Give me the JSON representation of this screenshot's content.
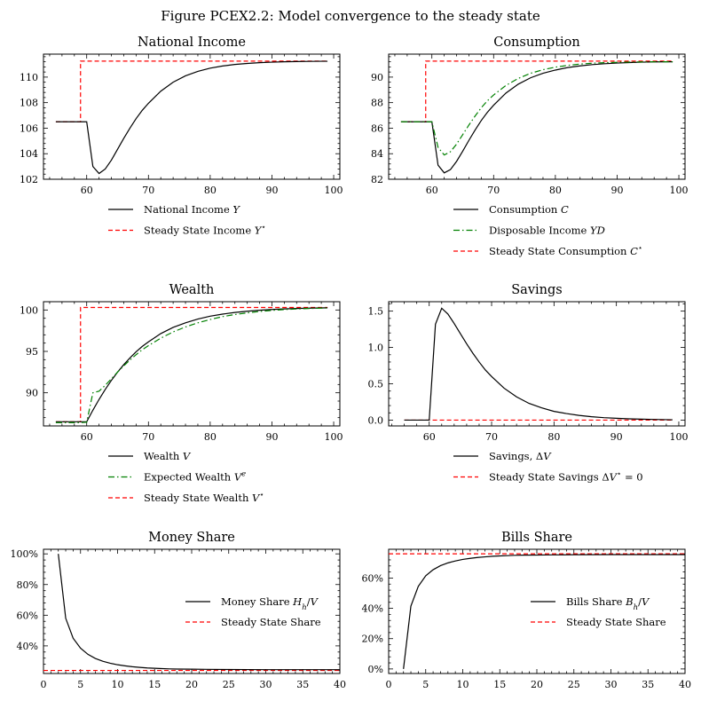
{
  "figure": {
    "title": "Figure PCEX2.2: Model convergence to the steady state"
  },
  "chart_data": [
    {
      "type": "line",
      "title": "National Income",
      "xlim": [
        53,
        101
      ],
      "ylim": [
        102,
        111.8
      ],
      "xticks": [
        60,
        70,
        80,
        90,
        100
      ],
      "yticks": [
        102,
        104,
        106,
        108,
        110
      ],
      "ytick_format": "plain",
      "legend_position": "below",
      "series": [
        {
          "name": "National Income Y",
          "color": "#000000",
          "dash": "solid",
          "x": [
            55,
            56,
            57,
            58,
            59,
            60,
            61,
            62,
            63,
            64,
            65,
            66,
            67,
            68,
            69,
            70,
            72,
            74,
            76,
            78,
            80,
            82,
            84,
            86,
            88,
            90,
            92,
            94,
            96,
            98,
            99
          ],
          "y": [
            106.5,
            106.5,
            106.5,
            106.5,
            106.5,
            106.5,
            103.0,
            102.45,
            102.8,
            103.5,
            104.35,
            105.2,
            106.0,
            106.75,
            107.4,
            107.95,
            108.9,
            109.6,
            110.1,
            110.45,
            110.7,
            110.87,
            110.99,
            111.07,
            111.13,
            111.17,
            111.2,
            111.22,
            111.23,
            111.24,
            111.24
          ]
        },
        {
          "name": "Steady State Income Y*",
          "color": "#ff0000",
          "dash": "dashed",
          "x": [
            55,
            59,
            59,
            99
          ],
          "y": [
            106.5,
            106.5,
            111.25,
            111.25
          ]
        }
      ]
    },
    {
      "type": "line",
      "title": "Consumption",
      "xlim": [
        53,
        101
      ],
      "ylim": [
        82,
        91.8
      ],
      "xticks": [
        60,
        70,
        80,
        90,
        100
      ],
      "yticks": [
        82,
        84,
        86,
        88,
        90
      ],
      "ytick_format": "plain",
      "legend_position": "below",
      "series": [
        {
          "name": "Consumption C",
          "color": "#000000",
          "dash": "solid",
          "x": [
            55,
            56,
            57,
            58,
            59,
            60,
            61,
            62,
            63,
            64,
            65,
            66,
            67,
            68,
            69,
            70,
            72,
            74,
            76,
            78,
            80,
            82,
            84,
            86,
            88,
            90,
            92,
            94,
            96,
            98,
            99
          ],
          "y": [
            86.5,
            86.5,
            86.5,
            86.5,
            86.5,
            86.5,
            83.1,
            82.5,
            82.75,
            83.4,
            84.2,
            85.05,
            85.85,
            86.6,
            87.25,
            87.8,
            88.75,
            89.45,
            89.95,
            90.3,
            90.55,
            90.75,
            90.88,
            90.98,
            91.05,
            91.1,
            91.14,
            91.17,
            91.19,
            91.2,
            91.2
          ]
        },
        {
          "name": "Disposable Income YD",
          "color": "#008000",
          "dash": "dashdot",
          "x": [
            55,
            56,
            57,
            58,
            59,
            60,
            61,
            62,
            63,
            64,
            65,
            66,
            67,
            68,
            69,
            70,
            72,
            74,
            76,
            78,
            80,
            82,
            84,
            86,
            88,
            90,
            92,
            94,
            96,
            98,
            99
          ],
          "y": [
            86.5,
            86.5,
            86.5,
            86.5,
            86.5,
            86.5,
            84.5,
            83.9,
            84.15,
            84.75,
            85.5,
            86.25,
            86.95,
            87.6,
            88.15,
            88.6,
            89.35,
            89.9,
            90.3,
            90.58,
            90.78,
            90.92,
            91.02,
            91.09,
            91.13,
            91.16,
            91.18,
            91.19,
            91.2,
            91.2,
            91.2
          ]
        },
        {
          "name": "Steady State Consumption C*",
          "color": "#ff0000",
          "dash": "dashed",
          "x": [
            55,
            59,
            59,
            99
          ],
          "y": [
            86.5,
            86.5,
            91.25,
            91.25
          ]
        }
      ]
    },
    {
      "type": "line",
      "title": "Wealth",
      "xlim": [
        53,
        101
      ],
      "ylim": [
        86,
        101
      ],
      "xticks": [
        60,
        70,
        80,
        90,
        100
      ],
      "yticks": [
        90,
        95,
        100
      ],
      "ytick_format": "plain",
      "legend_position": "below",
      "series": [
        {
          "name": "Wealth V",
          "color": "#000000",
          "dash": "solid",
          "x": [
            55,
            56,
            57,
            58,
            59,
            60,
            61,
            62,
            63,
            64,
            65,
            66,
            67,
            68,
            69,
            70,
            72,
            74,
            76,
            78,
            80,
            82,
            84,
            86,
            88,
            90,
            92,
            94,
            96,
            98,
            99
          ],
          "y": [
            86.5,
            86.5,
            86.5,
            86.5,
            86.5,
            86.5,
            87.9,
            89.2,
            90.4,
            91.5,
            92.5,
            93.4,
            94.2,
            94.95,
            95.6,
            96.15,
            97.15,
            97.9,
            98.45,
            98.9,
            99.25,
            99.5,
            99.7,
            99.85,
            99.97,
            100.06,
            100.13,
            100.18,
            100.22,
            100.25,
            100.26
          ]
        },
        {
          "name": "Expected Wealth V^e",
          "color": "#008000",
          "dash": "dashdot",
          "x": [
            55,
            56,
            57,
            58,
            59,
            60,
            61,
            62,
            63,
            64,
            65,
            66,
            67,
            68,
            69,
            70,
            72,
            74,
            76,
            78,
            80,
            82,
            84,
            86,
            88,
            90,
            92,
            94,
            96,
            98,
            99
          ],
          "y": [
            86.4,
            86.4,
            86.4,
            86.4,
            86.4,
            86.45,
            90.0,
            90.2,
            90.9,
            91.7,
            92.5,
            93.25,
            93.95,
            94.6,
            95.2,
            95.7,
            96.6,
            97.35,
            97.95,
            98.45,
            98.85,
            99.2,
            99.45,
            99.65,
            99.82,
            99.95,
            100.05,
            100.12,
            100.18,
            100.22,
            100.24
          ]
        },
        {
          "name": "Steady State Wealth V*",
          "color": "#ff0000",
          "dash": "dashed",
          "x": [
            55,
            59,
            59,
            99
          ],
          "y": [
            86.5,
            86.5,
            100.3,
            100.3
          ]
        }
      ]
    },
    {
      "type": "line",
      "title": "Savings",
      "xlim": [
        53.5,
        101
      ],
      "ylim": [
        -0.08,
        1.63
      ],
      "xticks": [
        60,
        70,
        80,
        90,
        100
      ],
      "yticks": [
        0.0,
        0.5,
        1.0,
        1.5
      ],
      "ytick_format": "one_decimal",
      "legend_position": "below",
      "series": [
        {
          "name": "Savings, ΔV",
          "color": "#000000",
          "dash": "solid",
          "x": [
            56,
            57,
            58,
            59,
            60,
            61,
            62,
            63,
            64,
            65,
            66,
            67,
            68,
            69,
            70,
            72,
            74,
            76,
            78,
            80,
            82,
            84,
            86,
            88,
            90,
            92,
            94,
            96,
            98,
            99
          ],
          "y": [
            0.0,
            0.0,
            0.0,
            0.0,
            0.0,
            1.32,
            1.54,
            1.46,
            1.33,
            1.19,
            1.05,
            0.92,
            0.8,
            0.69,
            0.6,
            0.44,
            0.32,
            0.23,
            0.17,
            0.12,
            0.09,
            0.065,
            0.047,
            0.034,
            0.025,
            0.018,
            0.013,
            0.009,
            0.006,
            0.005
          ]
        },
        {
          "name": "Steady State Savings ΔV* = 0",
          "color": "#ff0000",
          "dash": "dashed",
          "x": [
            56,
            99
          ],
          "y": [
            0.0,
            0.0
          ]
        }
      ]
    },
    {
      "type": "line",
      "title": "Money Share",
      "xlim": [
        0,
        40
      ],
      "ylim": [
        0.22,
        1.03
      ],
      "xticks": [
        0,
        5,
        10,
        15,
        20,
        25,
        30,
        35,
        40
      ],
      "yticks": [
        0.4,
        0.6,
        0.8,
        1.0
      ],
      "ytick_format": "percent",
      "legend_position": "center-right",
      "series": [
        {
          "name": "Money Share H_h/V",
          "color": "#000000",
          "dash": "solid",
          "x": [
            2,
            3,
            4,
            5,
            6,
            7,
            8,
            9,
            10,
            11,
            12,
            13,
            14,
            15,
            16,
            17,
            18,
            20,
            22,
            25,
            30,
            35,
            40
          ],
          "y": [
            1.0,
            0.58,
            0.45,
            0.385,
            0.345,
            0.318,
            0.3,
            0.287,
            0.277,
            0.27,
            0.264,
            0.26,
            0.256,
            0.254,
            0.252,
            0.25,
            0.249,
            0.248,
            0.247,
            0.246,
            0.245,
            0.245,
            0.245
          ]
        },
        {
          "name": "Steady State Share",
          "color": "#ff0000",
          "dash": "dashed",
          "x": [
            0,
            40
          ],
          "y": [
            0.24,
            0.24
          ]
        }
      ]
    },
    {
      "type": "line",
      "title": "Bills Share",
      "xlim": [
        0,
        40
      ],
      "ylim": [
        -0.03,
        0.79
      ],
      "xticks": [
        0,
        5,
        10,
        15,
        20,
        25,
        30,
        35,
        40
      ],
      "yticks": [
        0.0,
        0.2,
        0.4,
        0.6
      ],
      "ytick_format": "percent",
      "legend_position": "center-right",
      "series": [
        {
          "name": "Bills Share B_h/V",
          "color": "#000000",
          "dash": "solid",
          "x": [
            2,
            3,
            4,
            5,
            6,
            7,
            8,
            9,
            10,
            11,
            12,
            13,
            14,
            15,
            16,
            17,
            18,
            20,
            22,
            25,
            30,
            35,
            40
          ],
          "y": [
            0.0,
            0.415,
            0.545,
            0.615,
            0.655,
            0.682,
            0.7,
            0.713,
            0.723,
            0.73,
            0.736,
            0.74,
            0.744,
            0.746,
            0.748,
            0.75,
            0.751,
            0.752,
            0.753,
            0.754,
            0.755,
            0.755,
            0.755
          ]
        },
        {
          "name": "Steady State Share",
          "color": "#ff0000",
          "dash": "dashed",
          "x": [
            0,
            40
          ],
          "y": [
            0.76,
            0.76
          ]
        }
      ]
    }
  ]
}
